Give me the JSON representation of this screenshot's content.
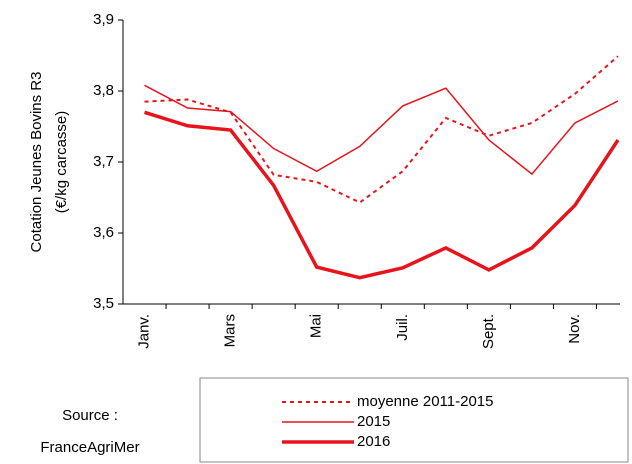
{
  "chart_data": {
    "type": "line",
    "y_label": [
      "Cotation Jeunes Bovins R3",
      "(€/kg carcasse)"
    ],
    "source": [
      "Source :",
      "FranceAgriMer"
    ],
    "categories": [
      "Janv.",
      null,
      "Mars",
      null,
      "Mai",
      null,
      "Juil.",
      null,
      "Sept.",
      null,
      "Nov.",
      null
    ],
    "series": [
      {
        "name": "moyenne 2011-2015",
        "color": "#e8141b",
        "style": "dotted",
        "width": 2,
        "values": [
          3.785,
          3.788,
          3.77,
          3.682,
          3.672,
          3.643,
          3.687,
          3.762,
          3.737,
          3.755,
          3.796,
          3.849
        ]
      },
      {
        "name": "2015",
        "color": "#e8141b",
        "style": "solid",
        "width": 1.5,
        "values": [
          3.808,
          3.776,
          3.771,
          3.719,
          3.687,
          3.722,
          3.779,
          3.804,
          3.731,
          3.683,
          3.755,
          3.786
        ]
      },
      {
        "name": "2016",
        "color": "#e8141b",
        "style": "solid",
        "width": 3.5,
        "values": [
          3.77,
          3.751,
          3.745,
          3.667,
          3.552,
          3.537,
          3.551,
          3.579,
          3.548,
          3.579,
          3.639,
          3.731
        ]
      }
    ],
    "ylim": [
      3.5,
      3.9
    ],
    "yticks": [
      {
        "value": 3.5,
        "label": "3,5"
      },
      {
        "value": 3.6,
        "label": "3,6"
      },
      {
        "value": 3.7,
        "label": "3,7"
      },
      {
        "value": 3.8,
        "label": "3,8"
      },
      {
        "value": 3.9,
        "label": "3,9"
      }
    ]
  }
}
